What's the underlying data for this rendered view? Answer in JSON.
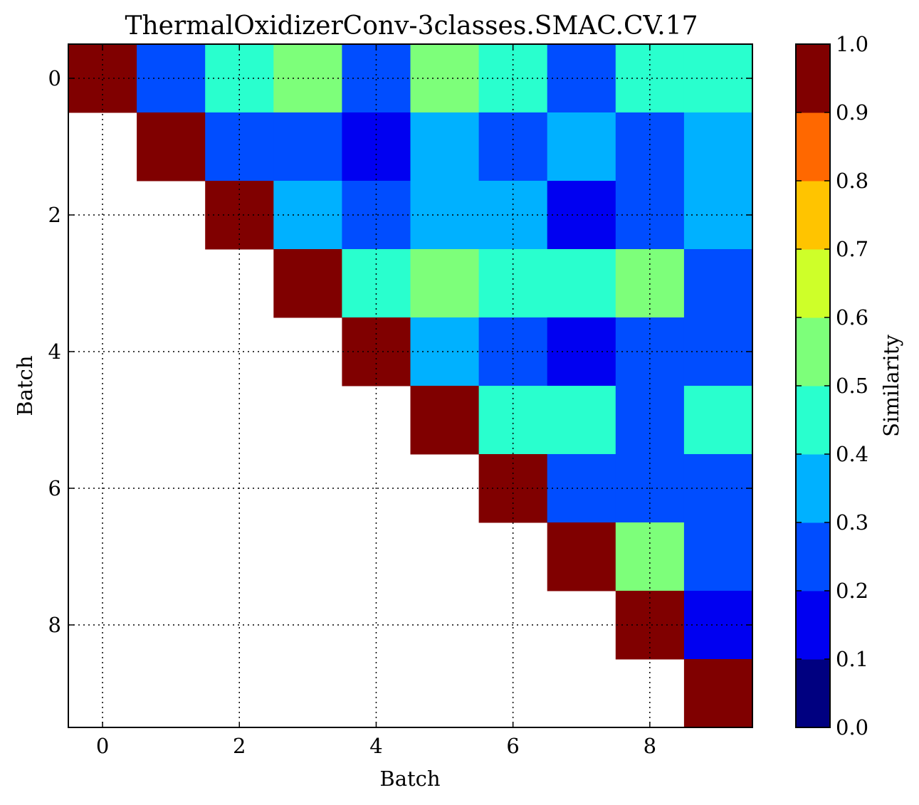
{
  "chart_data": {
    "type": "heatmap",
    "title": "ThermalOxidizerConv-3classes.SMAC.CV.17",
    "xlabel": "Batch",
    "ylabel": "Batch",
    "colorbar_label": "Similarity",
    "xticks": [
      "0",
      "2",
      "4",
      "6",
      "8"
    ],
    "yticks": [
      "0",
      "2",
      "4",
      "6",
      "8"
    ],
    "colorbar_ticks": [
      "0.0",
      "0.1",
      "0.2",
      "0.3",
      "0.4",
      "0.5",
      "0.6",
      "0.7",
      "0.8",
      "0.9",
      "1.0"
    ],
    "vlim": [
      0,
      1
    ],
    "colormap_bins": [
      "#000080",
      "#0000f1",
      "#004dff",
      "#00b1ff",
      "#29ffce",
      "#7dff7a",
      "#ceff29",
      "#ffc400",
      "#ff6800",
      "#f10800",
      "#800000"
    ],
    "grid": true,
    "matrix": [
      [
        1.0,
        0.25,
        0.45,
        0.55,
        0.25,
        0.55,
        0.45,
        0.25,
        0.45,
        0.45
      ],
      [
        null,
        1.0,
        0.25,
        0.25,
        0.15,
        0.35,
        0.25,
        0.35,
        0.25,
        0.35
      ],
      [
        null,
        null,
        1.0,
        0.35,
        0.25,
        0.35,
        0.35,
        0.15,
        0.25,
        0.35
      ],
      [
        null,
        null,
        null,
        1.0,
        0.45,
        0.55,
        0.45,
        0.45,
        0.55,
        0.25
      ],
      [
        null,
        null,
        null,
        null,
        1.0,
        0.35,
        0.25,
        0.15,
        0.25,
        0.25
      ],
      [
        null,
        null,
        null,
        null,
        null,
        1.0,
        0.45,
        0.45,
        0.25,
        0.45
      ],
      [
        null,
        null,
        null,
        null,
        null,
        null,
        1.0,
        0.25,
        0.25,
        0.25
      ],
      [
        null,
        null,
        null,
        null,
        null,
        null,
        null,
        1.0,
        0.55,
        0.25
      ],
      [
        null,
        null,
        null,
        null,
        null,
        null,
        null,
        null,
        1.0,
        0.15
      ],
      [
        null,
        null,
        null,
        null,
        null,
        null,
        null,
        null,
        null,
        1.0
      ]
    ]
  }
}
